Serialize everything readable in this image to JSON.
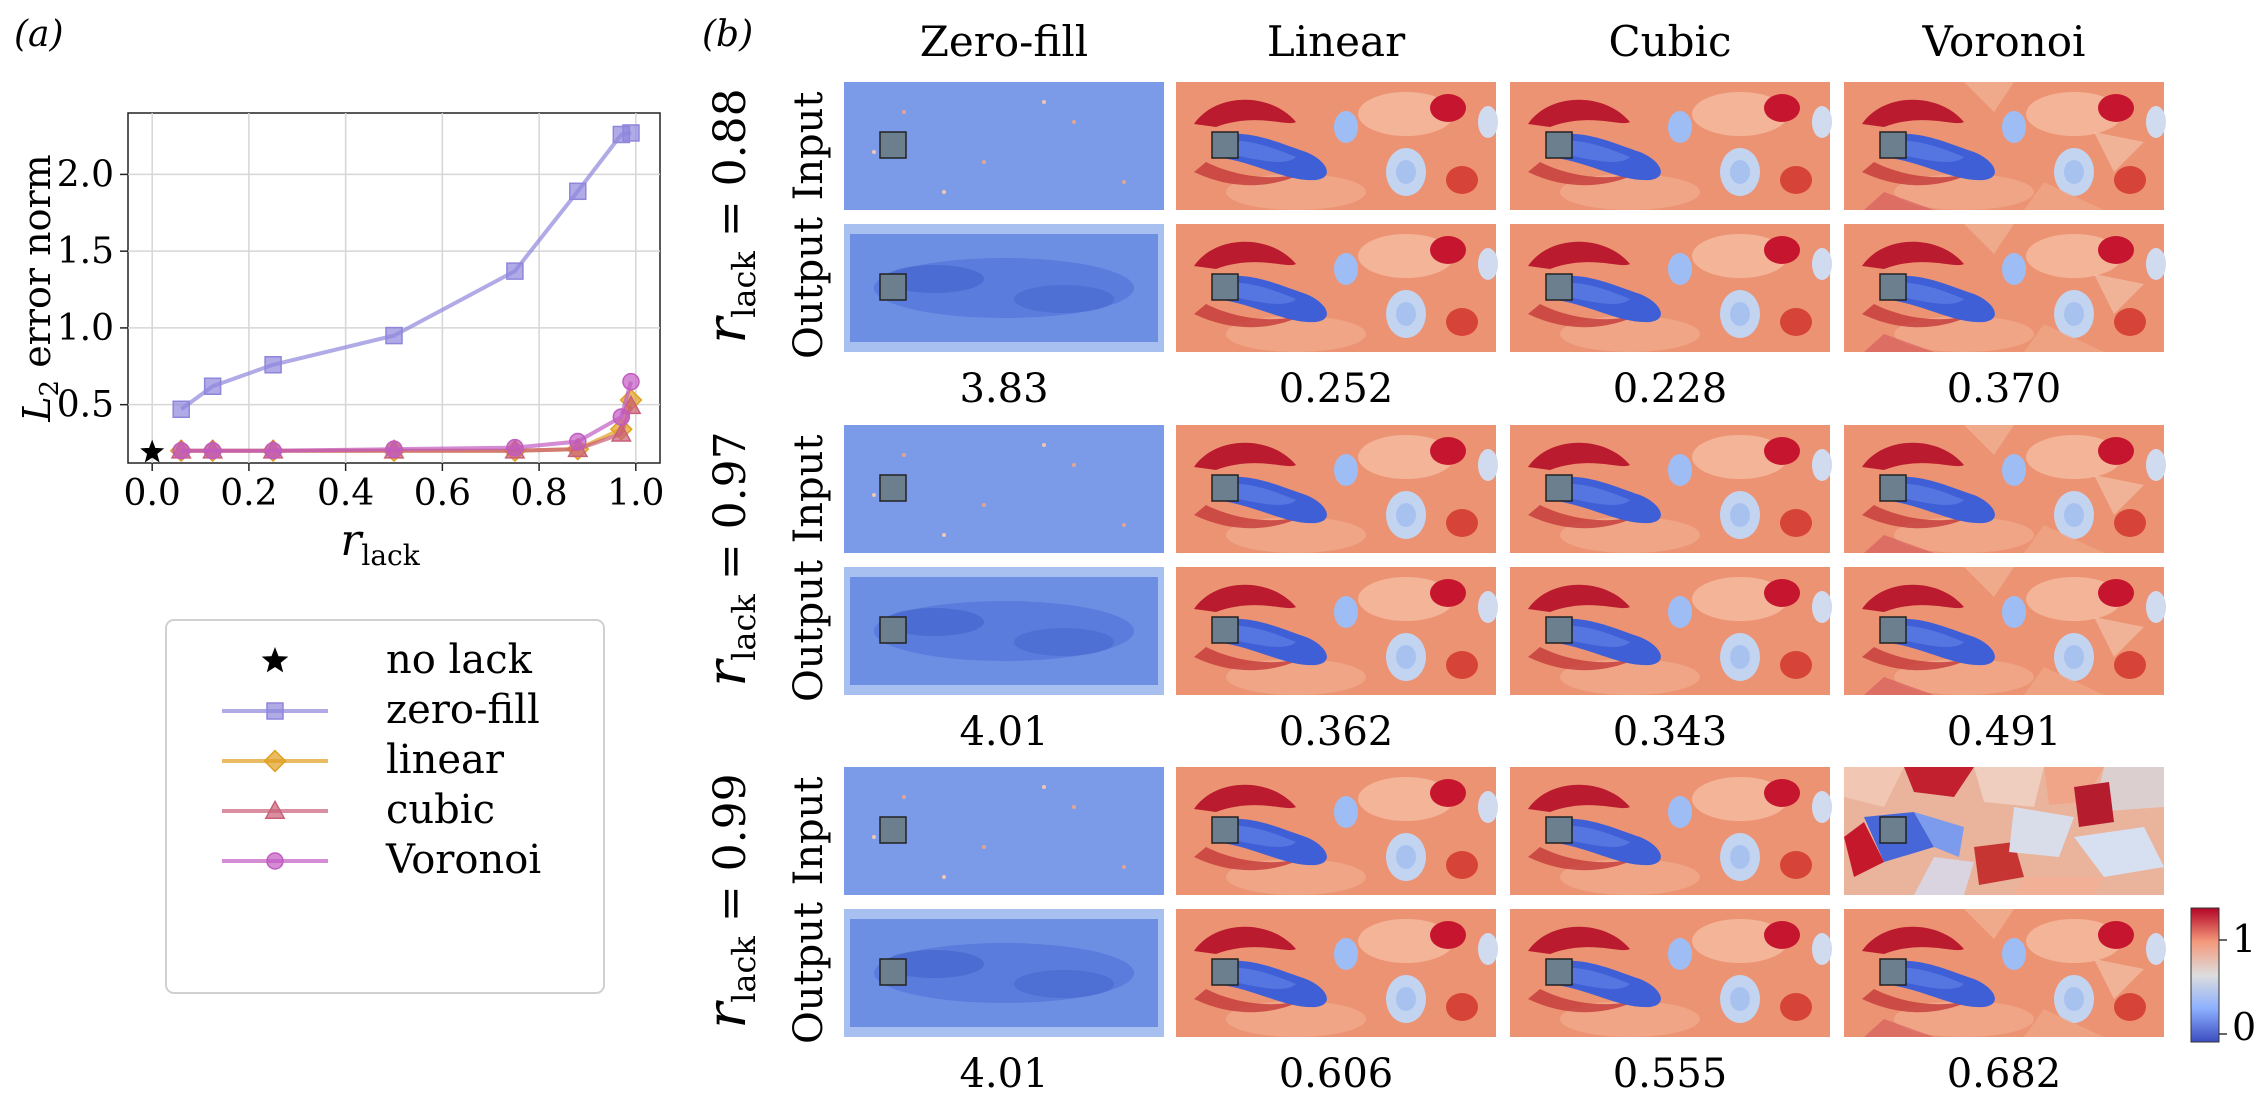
{
  "panel_a": {
    "label": "(a)",
    "ylabel_main": "L",
    "ylabel_sub": "2",
    "ylabel_rest": " error norm",
    "xlabel_main": "r",
    "xlabel_sub": "lack",
    "legend": [
      {
        "key": "nolack",
        "label": "no lack"
      },
      {
        "key": "zerofill",
        "label": "zero-fill"
      },
      {
        "key": "linear",
        "label": "linear"
      },
      {
        "key": "cubic",
        "label": "cubic"
      },
      {
        "key": "voronoi",
        "label": "Voronoi"
      }
    ]
  },
  "chart_data": {
    "type": "line",
    "title": "",
    "xlabel": "r_lack",
    "ylabel": "L2 error norm",
    "xlim": [
      -0.05,
      1.05
    ],
    "ylim": [
      0.12,
      2.4
    ],
    "xticks": [
      0.0,
      0.2,
      0.4,
      0.6,
      0.8,
      1.0
    ],
    "xtick_labels": [
      "0.0",
      "0.2",
      "0.4",
      "0.6",
      "0.8",
      "1.0"
    ],
    "yticks": [
      0.5,
      1.0,
      1.5,
      2.0
    ],
    "ytick_labels": [
      "0.5",
      "1.0",
      "1.5",
      "2.0"
    ],
    "grid": true,
    "series": [
      {
        "key": "nolack",
        "name": "no lack",
        "color": "#000000",
        "marker": "star",
        "x": [
          0.0
        ],
        "y": [
          0.19
        ]
      },
      {
        "key": "zerofill",
        "name": "zero-fill",
        "color": "#8f86dc",
        "marker": "square",
        "x": [
          0.06,
          0.125,
          0.25,
          0.5,
          0.75,
          0.88,
          0.97,
          0.99
        ],
        "y": [
          0.47,
          0.62,
          0.76,
          0.95,
          1.37,
          1.89,
          2.26,
          2.27
        ]
      },
      {
        "key": "linear",
        "name": "linear",
        "color": "#e0a020",
        "marker": "diamond",
        "x": [
          0.06,
          0.125,
          0.25,
          0.5,
          0.75,
          0.88,
          0.97,
          0.99
        ],
        "y": [
          0.2,
          0.2,
          0.2,
          0.2,
          0.2,
          0.21,
          0.34,
          0.53
        ]
      },
      {
        "key": "cubic",
        "name": "cubic",
        "color": "#c95f78",
        "marker": "triangle",
        "x": [
          0.06,
          0.125,
          0.25,
          0.5,
          0.75,
          0.88,
          0.97,
          0.99
        ],
        "y": [
          0.2,
          0.2,
          0.2,
          0.2,
          0.2,
          0.21,
          0.31,
          0.49
        ]
      },
      {
        "key": "voronoi",
        "name": "Voronoi",
        "color": "#c25bc2",
        "marker": "circle",
        "x": [
          0.06,
          0.125,
          0.25,
          0.5,
          0.75,
          0.88,
          0.97,
          0.99
        ],
        "y": [
          0.2,
          0.2,
          0.2,
          0.21,
          0.22,
          0.26,
          0.42,
          0.65
        ]
      }
    ]
  },
  "panel_b": {
    "label": "(b)",
    "columns": [
      "Zero-fill",
      "Linear",
      "Cubic",
      "Voronoi"
    ],
    "row_label_input": "Input",
    "row_label_output": "Output",
    "groups": [
      {
        "r_main": "r",
        "r_sub": "lack",
        "r_value": " = 0.88",
        "errors": [
          "3.83",
          "0.252",
          "0.228",
          "0.370"
        ]
      },
      {
        "r_main": "r",
        "r_sub": "lack",
        "r_value": " = 0.97",
        "errors": [
          "4.01",
          "0.362",
          "0.343",
          "0.491"
        ]
      },
      {
        "r_main": "r",
        "r_sub": "lack",
        "r_value": " = 0.99",
        "errors": [
          "4.01",
          "0.606",
          "0.555",
          "0.682"
        ]
      }
    ],
    "colorbar": {
      "max_label": "1",
      "min_label": "0"
    }
  }
}
